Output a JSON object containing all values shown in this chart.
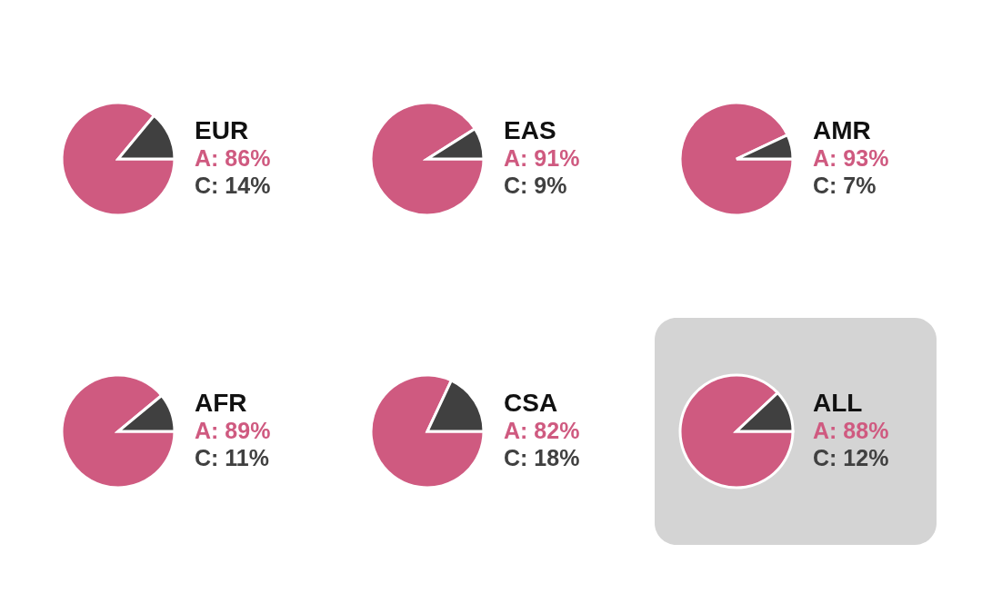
{
  "chart_data": [
    {
      "type": "pie",
      "title": "EUR",
      "categories": [
        "A",
        "C"
      ],
      "values": [
        86,
        14
      ],
      "colors": [
        "#cf5a80",
        "#404040"
      ],
      "value_labels": [
        "86%",
        "14%"
      ]
    },
    {
      "type": "pie",
      "title": "EAS",
      "categories": [
        "A",
        "C"
      ],
      "values": [
        91,
        9
      ],
      "colors": [
        "#cf5a80",
        "#404040"
      ],
      "value_labels": [
        "91%",
        "9%"
      ]
    },
    {
      "type": "pie",
      "title": "AMR",
      "categories": [
        "A",
        "C"
      ],
      "values": [
        93,
        7
      ],
      "colors": [
        "#cf5a80",
        "#404040"
      ],
      "value_labels": [
        "93%",
        "7%"
      ]
    },
    {
      "type": "pie",
      "title": "AFR",
      "categories": [
        "A",
        "C"
      ],
      "values": [
        89,
        11
      ],
      "colors": [
        "#cf5a80",
        "#404040"
      ],
      "value_labels": [
        "89%",
        "11%"
      ]
    },
    {
      "type": "pie",
      "title": "CSA",
      "categories": [
        "A",
        "C"
      ],
      "values": [
        82,
        18
      ],
      "colors": [
        "#cf5a80",
        "#404040"
      ],
      "value_labels": [
        "82%",
        "18%"
      ]
    },
    {
      "type": "pie",
      "title": "ALL",
      "categories": [
        "A",
        "C"
      ],
      "values": [
        88,
        12
      ],
      "colors": [
        "#cf5a80",
        "#404040"
      ],
      "value_labels": [
        "88%",
        "12%"
      ]
    }
  ]
}
